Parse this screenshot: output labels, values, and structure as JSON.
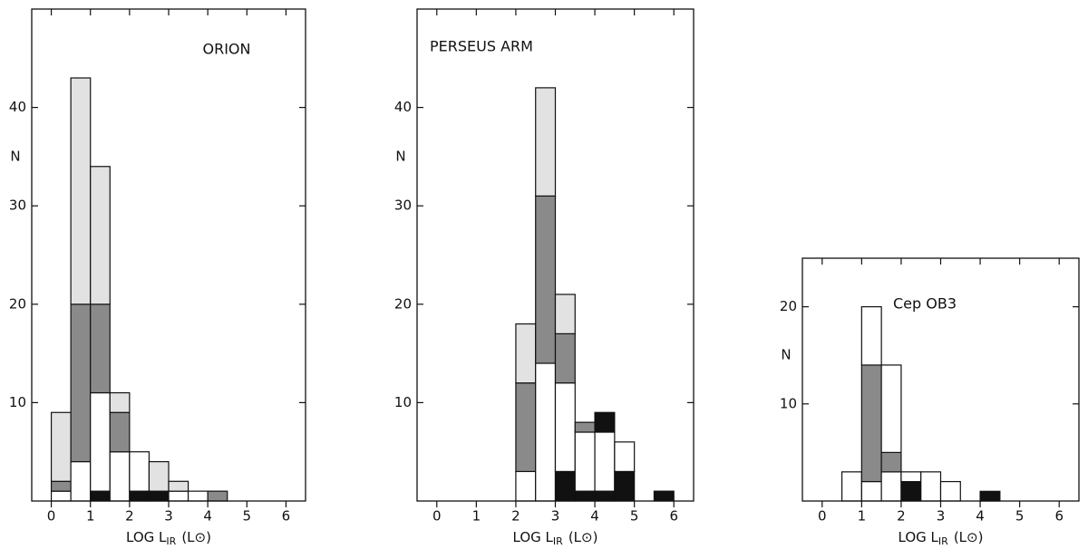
{
  "chart_data": [
    {
      "type": "histogram",
      "title": "ORION",
      "y_label": "N",
      "x_label": "LOG L",
      "x_label_sub": "IR",
      "x_label_unit": "(L⊙)",
      "bins": [
        0,
        0.5,
        1,
        1.5,
        2,
        2.5,
        3,
        3.5,
        4,
        4.5
      ],
      "series": [
        {
          "color": "#111111",
          "values": [
            0,
            0,
            1,
            0,
            1,
            1,
            0,
            0,
            0
          ]
        },
        {
          "color": "#ffffff",
          "values": [
            1,
            4,
            10,
            5,
            4,
            0,
            1,
            1,
            0
          ]
        },
        {
          "color": "#8a8a8a",
          "values": [
            1,
            16,
            9,
            4,
            0,
            0,
            0,
            0,
            1
          ]
        },
        {
          "color": "#e2e2e2",
          "values": [
            7,
            23,
            14,
            2,
            0,
            3,
            1,
            0,
            0
          ]
        }
      ],
      "xlim": [
        -0.5,
        6.5
      ],
      "ylim": [
        0,
        50
      ],
      "xticks": [
        0,
        1,
        2,
        3,
        4,
        5,
        6
      ],
      "yticks": [
        10,
        20,
        30,
        40
      ],
      "grid": false
    },
    {
      "type": "histogram",
      "title": "PERSEUS ARM",
      "y_label": "N",
      "x_label": "LOG L",
      "x_label_sub": "IR",
      "x_label_unit": "(L⊙)",
      "bins": [
        2,
        2.5,
        3,
        3.5,
        4,
        4.5,
        5,
        5.5,
        6
      ],
      "series": [
        {
          "color": "#111111",
          "values": [
            0,
            0,
            3,
            1,
            1,
            3,
            0,
            1
          ]
        },
        {
          "color": "#ffffff",
          "values": [
            3,
            14,
            9,
            6,
            6,
            3,
            0,
            0
          ]
        },
        {
          "color": "#8a8a8a",
          "values": [
            9,
            17,
            5,
            1,
            0,
            0,
            0,
            0
          ]
        },
        {
          "color": "#e2e2e2",
          "values": [
            6,
            11,
            4,
            0,
            0,
            0,
            0,
            0
          ]
        },
        {
          "color": "#111111",
          "values": [
            0,
            0,
            0,
            0,
            2,
            0,
            0,
            0
          ]
        }
      ],
      "xlim": [
        -0.5,
        6.5
      ],
      "ylim": [
        0,
        50
      ],
      "xticks": [
        0,
        1,
        2,
        3,
        4,
        5,
        6
      ],
      "yticks": [
        10,
        20,
        30,
        40
      ],
      "grid": false
    },
    {
      "type": "histogram",
      "title": "Cep OB3",
      "y_label": "N",
      "x_label": "LOG L",
      "x_label_sub": "IR",
      "x_label_unit": "(L⊙)",
      "bins": [
        0.5,
        1,
        1.5,
        2,
        2.5,
        3,
        3.5,
        4,
        4.5
      ],
      "series": [
        {
          "color": "#111111",
          "values": [
            0,
            0,
            0,
            2,
            0,
            0,
            0,
            1
          ]
        },
        {
          "color": "#ffffff",
          "values": [
            3,
            2,
            3,
            1,
            3,
            2,
            0,
            0
          ]
        },
        {
          "color": "#8a8a8a",
          "values": [
            0,
            12,
            2,
            0,
            0,
            0,
            0,
            0
          ]
        },
        {
          "color": "#ffffff",
          "values": [
            0,
            6,
            9,
            0,
            0,
            0,
            0,
            0
          ]
        }
      ],
      "xlim": [
        -0.5,
        6.5
      ],
      "ylim": [
        0,
        25
      ],
      "xticks": [
        0,
        1,
        2,
        3,
        4,
        5,
        6
      ],
      "yticks": [
        10,
        20
      ],
      "grid": false
    }
  ]
}
